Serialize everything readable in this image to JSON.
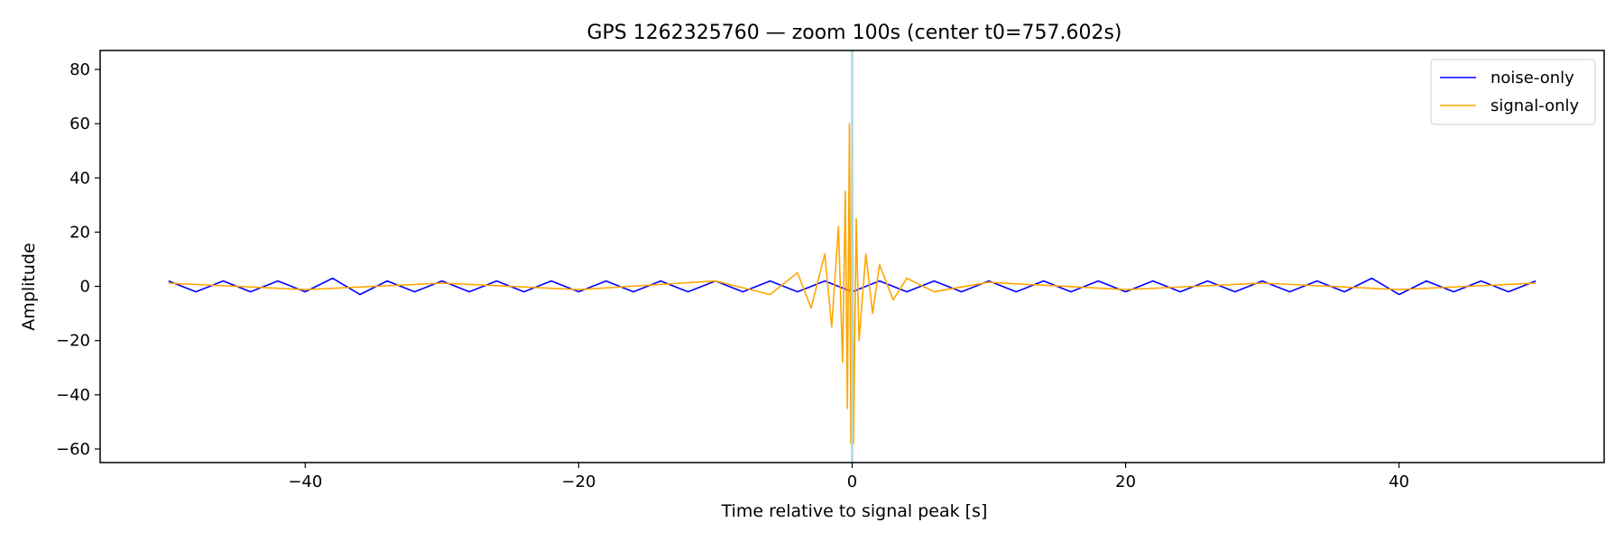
{
  "chart_data": {
    "type": "line",
    "title": "GPS 1262325760 — zoom 100s (center t0=757.602s)",
    "xlabel": "Time relative to signal peak [s]",
    "ylabel": "Amplitude",
    "xlim": [
      -55,
      55
    ],
    "ylim": [
      -65,
      87
    ],
    "xticks": [
      -40,
      -20,
      0,
      20,
      40
    ],
    "xtick_labels": [
      "−40",
      "−20",
      "0",
      "20",
      "40"
    ],
    "yticks": [
      -60,
      -40,
      -20,
      0,
      20,
      40,
      60,
      80
    ],
    "ytick_labels": [
      "−60",
      "−40",
      "−20",
      "0",
      "20",
      "40",
      "60",
      "80"
    ],
    "grid": false,
    "legend_position": "top-right",
    "peak_marker_x": 0,
    "peak_marker_color": "#add8e6",
    "series": [
      {
        "name": "noise-only",
        "color": "#0000ff",
        "x": [
          -50,
          -48,
          -46,
          -44,
          -42,
          -40,
          -38,
          -36,
          -34,
          -32,
          -30,
          -28,
          -26,
          -24,
          -22,
          -20,
          -18,
          -16,
          -14,
          -12,
          -10,
          -8,
          -6,
          -4,
          -2,
          0,
          2,
          4,
          6,
          8,
          10,
          12,
          14,
          16,
          18,
          20,
          22,
          24,
          26,
          28,
          30,
          32,
          34,
          36,
          38,
          40,
          42,
          44,
          46,
          48,
          50
        ],
        "y": [
          2,
          -2,
          2,
          -2,
          2,
          -2,
          3,
          -3,
          2,
          -2,
          2,
          -2,
          2,
          -2,
          2,
          -2,
          2,
          -2,
          2,
          -2,
          2,
          -2,
          2,
          -2,
          2,
          -2,
          2,
          -2,
          2,
          -2,
          2,
          -2,
          2,
          -2,
          2,
          -2,
          2,
          -2,
          2,
          -2,
          2,
          -2,
          2,
          -2,
          3,
          -3,
          2,
          -2,
          2,
          -2,
          2
        ]
      },
      {
        "name": "signal-only",
        "color": "#ffa500",
        "x": [
          -50,
          -40,
          -30,
          -20,
          -10,
          -6,
          -4,
          -3,
          -2,
          -1.5,
          -1,
          -0.7,
          -0.5,
          -0.35,
          -0.2,
          -0.1,
          0,
          0.1,
          0.3,
          0.5,
          1,
          1.5,
          2,
          3,
          4,
          6,
          10,
          20,
          30,
          40,
          50
        ],
        "y": [
          1.2,
          -1.2,
          1.2,
          -1.2,
          2,
          -3,
          5,
          -8,
          12,
          -15,
          22,
          -28,
          35,
          -45,
          60,
          -58,
          80,
          -58,
          25,
          -20,
          12,
          -10,
          8,
          -5,
          3,
          -2,
          1.5,
          -1.2,
          1.2,
          -1.2,
          1.2
        ]
      }
    ]
  }
}
